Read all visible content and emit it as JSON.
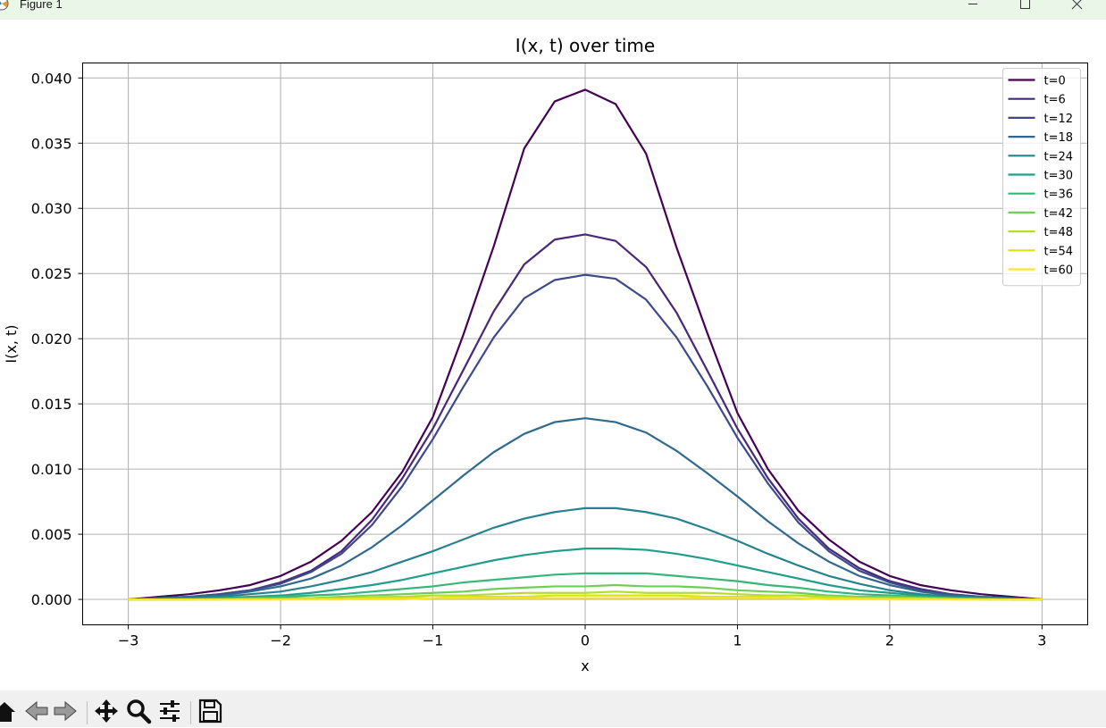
{
  "window": {
    "title": "Figure 1",
    "icon": "matplotlib-figure-icon",
    "controls": [
      "minimize-icon",
      "maximize-icon",
      "close-icon"
    ]
  },
  "toolbar": {
    "tools": [
      "home-icon",
      "back-arrow-icon",
      "forward-arrow-icon",
      "pan-move-icon",
      "zoom-magnifier-icon",
      "configure-subplots-icon",
      "save-disk-icon"
    ]
  },
  "chart_data": {
    "type": "line",
    "title": "I(x, t) over time",
    "xlabel": "x",
    "ylabel": "I(x, t)",
    "xlim": [
      -3.3,
      3.3
    ],
    "ylim": [
      -0.00195,
      0.04115
    ],
    "xticks": [
      "−3",
      "−2",
      "−1",
      "0",
      "1",
      "2",
      "3"
    ],
    "yticks": [
      "0.000",
      "0.005",
      "0.010",
      "0.015",
      "0.020",
      "0.025",
      "0.030",
      "0.035",
      "0.040"
    ],
    "grid": true,
    "legend_position": "upper right",
    "x": [
      -3,
      -2.8,
      -2.6,
      -2.4,
      -2.2,
      -2.0,
      -1.8,
      -1.6,
      -1.4,
      -1.2,
      -1.0,
      -0.8,
      -0.6,
      -0.4,
      -0.2,
      0.0,
      0.2,
      0.4,
      0.6,
      0.8,
      1.0,
      1.2,
      1.4,
      1.6,
      1.8,
      2.0,
      2.2,
      2.4,
      2.6,
      2.8,
      3.0
    ],
    "series": [
      {
        "name": "t=0",
        "color": "#440154",
        "values": [
          0.0,
          0.0002,
          0.0004,
          0.0007,
          0.0011,
          0.0018,
          0.0029,
          0.0045,
          0.0067,
          0.0098,
          0.014,
          0.0203,
          0.0271,
          0.0346,
          0.0382,
          0.0391,
          0.038,
          0.0342,
          0.027,
          0.0205,
          0.0143,
          0.01,
          0.0068,
          0.0046,
          0.0029,
          0.0018,
          0.0011,
          0.0007,
          0.0004,
          0.0002,
          0.0
        ]
      },
      {
        "name": "t=6",
        "color": "#482878",
        "values": [
          0.0,
          0.0001,
          0.0002,
          0.0004,
          0.0007,
          0.0013,
          0.0022,
          0.0037,
          0.0061,
          0.0093,
          0.0131,
          0.0176,
          0.0221,
          0.0257,
          0.0276,
          0.028,
          0.0275,
          0.0255,
          0.022,
          0.0176,
          0.0131,
          0.0093,
          0.0062,
          0.0039,
          0.0024,
          0.0014,
          0.0008,
          0.0004,
          0.0002,
          0.0001,
          0.0
        ]
      },
      {
        "name": "t=12",
        "color": "#3e4989",
        "values": [
          0.0,
          0.0001,
          0.0002,
          0.0004,
          0.0007,
          0.0012,
          0.0021,
          0.0035,
          0.0057,
          0.0087,
          0.0123,
          0.0163,
          0.0201,
          0.0231,
          0.0245,
          0.0249,
          0.0246,
          0.023,
          0.0201,
          0.0164,
          0.0124,
          0.0089,
          0.0059,
          0.0037,
          0.0022,
          0.0013,
          0.0007,
          0.0004,
          0.0002,
          0.0001,
          0.0
        ]
      },
      {
        "name": "t=18",
        "color": "#31688e",
        "values": [
          0.0,
          0.0001,
          0.0002,
          0.0003,
          0.0006,
          0.001,
          0.0016,
          0.0026,
          0.004,
          0.0057,
          0.0076,
          0.0095,
          0.0113,
          0.0127,
          0.0136,
          0.0139,
          0.0136,
          0.0128,
          0.0114,
          0.0097,
          0.0079,
          0.006,
          0.0043,
          0.0029,
          0.0018,
          0.0011,
          0.0006,
          0.0003,
          0.0002,
          0.0001,
          0.0
        ]
      },
      {
        "name": "t=24",
        "color": "#26828e",
        "values": [
          0.0,
          0.0001,
          0.0001,
          0.0002,
          0.0004,
          0.0006,
          0.001,
          0.0015,
          0.0021,
          0.0029,
          0.0037,
          0.0046,
          0.0055,
          0.0062,
          0.0067,
          0.007,
          0.007,
          0.0067,
          0.0062,
          0.0054,
          0.0045,
          0.0035,
          0.0026,
          0.0018,
          0.0012,
          0.0007,
          0.0004,
          0.0002,
          0.0001,
          0.0001,
          0.0
        ]
      },
      {
        "name": "t=30",
        "color": "#1f9e89",
        "values": [
          0.0,
          0.0,
          0.0001,
          0.0001,
          0.0002,
          0.0003,
          0.0005,
          0.0008,
          0.0011,
          0.0015,
          0.002,
          0.0025,
          0.003,
          0.0034,
          0.0037,
          0.0039,
          0.0039,
          0.0038,
          0.0035,
          0.0031,
          0.0026,
          0.0021,
          0.0016,
          0.0011,
          0.0007,
          0.0005,
          0.0003,
          0.0001,
          0.0001,
          0.0,
          0.0
        ]
      },
      {
        "name": "t=36",
        "color": "#35b779",
        "values": [
          0.0,
          0.0,
          0.0,
          0.0001,
          0.0001,
          0.0002,
          0.0003,
          0.0004,
          0.0006,
          0.0008,
          0.001,
          0.0013,
          0.0015,
          0.0017,
          0.0019,
          0.002,
          0.002,
          0.002,
          0.0018,
          0.0016,
          0.0014,
          0.0011,
          0.0009,
          0.0006,
          0.0004,
          0.0003,
          0.0002,
          0.0001,
          0.0001,
          0.0,
          0.0
        ]
      },
      {
        "name": "t=42",
        "color": "#6ece58",
        "values": [
          0.0,
          0.0,
          0.0,
          0.0,
          0.0001,
          0.0001,
          0.0001,
          0.0002,
          0.0003,
          0.0004,
          0.0005,
          0.0006,
          0.0008,
          0.0009,
          0.001,
          0.001,
          0.0011,
          0.001,
          0.001,
          0.0009,
          0.0007,
          0.0006,
          0.0005,
          0.0003,
          0.0002,
          0.0002,
          0.0001,
          0.0001,
          0.0,
          0.0,
          0.0
        ]
      },
      {
        "name": "t=48",
        "color": "#b5de2b",
        "values": [
          0.0,
          0.0,
          0.0,
          0.0,
          0.0,
          0.0,
          0.0001,
          0.0001,
          0.0002,
          0.0002,
          0.0003,
          0.0003,
          0.0004,
          0.0005,
          0.0005,
          0.0005,
          0.0006,
          0.0005,
          0.0005,
          0.0005,
          0.0004,
          0.0003,
          0.0003,
          0.0002,
          0.0001,
          0.0001,
          0.0001,
          0.0,
          0.0,
          0.0,
          0.0
        ]
      },
      {
        "name": "t=54",
        "color": "#d8e219",
        "values": [
          0.0,
          0.0,
          0.0,
          0.0,
          0.0,
          0.0,
          0.0,
          0.0,
          0.0001,
          0.0001,
          0.0001,
          0.0002,
          0.0002,
          0.0002,
          0.0003,
          0.0003,
          0.0003,
          0.0003,
          0.0003,
          0.0002,
          0.0002,
          0.0002,
          0.0001,
          0.0001,
          0.0001,
          0.0,
          0.0,
          0.0,
          0.0,
          0.0,
          0.0
        ]
      },
      {
        "name": "t=60",
        "color": "#fde725",
        "values": [
          0.0,
          0.0,
          0.0,
          0.0,
          0.0,
          0.0,
          0.0,
          0.0,
          0.0,
          0.0,
          0.0001,
          0.0001,
          0.0001,
          0.0001,
          0.0001,
          0.0001,
          0.0001,
          0.0001,
          0.0001,
          0.0001,
          0.0001,
          0.0001,
          0.0001,
          0.0,
          0.0,
          0.0,
          0.0,
          0.0,
          0.0,
          0.0,
          0.0
        ]
      }
    ]
  }
}
